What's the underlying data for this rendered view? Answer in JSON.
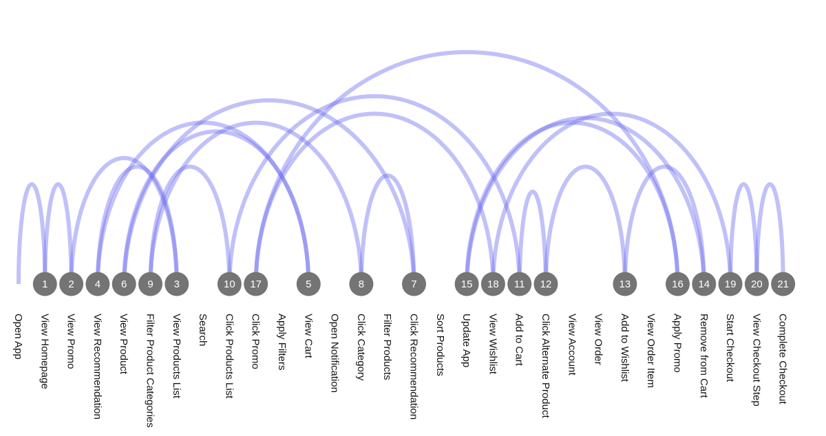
{
  "diagram": {
    "events": [
      "Open App",
      "View Homepage",
      "View Promo",
      "View Recommendation",
      "View Product",
      "Filter Product Categories",
      "View Products List",
      "Search",
      "Click Products List",
      "Click Promo",
      "Apply Filters",
      "View Cart",
      "Open Notification",
      "Click Category",
      "Filter Products",
      "Click Recommendation",
      "Sort Products",
      "Update App",
      "View Wishlist",
      "Add to Cart",
      "Click Alternate Product",
      "View Account",
      "View Order",
      "Add to Wishlist",
      "View Order Item",
      "Apply Promo",
      "Remove from Cart",
      "Start Checkout",
      "View Checkout Step",
      "Complete Checkout"
    ],
    "steps": [
      {
        "label": "1",
        "event_index": 1
      },
      {
        "label": "2",
        "event_index": 2
      },
      {
        "label": "3",
        "event_index": 6
      },
      {
        "label": "4",
        "event_index": 3
      },
      {
        "label": "5",
        "event_index": 11
      },
      {
        "label": "6",
        "event_index": 4
      },
      {
        "label": "7",
        "event_index": 15
      },
      {
        "label": "8",
        "event_index": 13
      },
      {
        "label": "9",
        "event_index": 5
      },
      {
        "label": "10",
        "event_index": 8
      },
      {
        "label": "11",
        "event_index": 19
      },
      {
        "label": "12",
        "event_index": 20
      },
      {
        "label": "13",
        "event_index": 23
      },
      {
        "label": "14",
        "event_index": 26
      },
      {
        "label": "15",
        "event_index": 17
      },
      {
        "label": "16",
        "event_index": 25
      },
      {
        "label": "17",
        "event_index": 9
      },
      {
        "label": "18",
        "event_index": 18
      },
      {
        "label": "19",
        "event_index": 27
      },
      {
        "label": "20",
        "event_index": 28
      },
      {
        "label": "21",
        "event_index": 29
      }
    ],
    "transitions": [
      [
        0,
        1
      ],
      [
        1,
        2
      ],
      [
        2,
        6
      ],
      [
        6,
        3
      ],
      [
        3,
        11
      ],
      [
        11,
        4
      ],
      [
        4,
        15
      ],
      [
        15,
        13
      ],
      [
        13,
        5
      ],
      [
        5,
        8
      ],
      [
        8,
        19
      ],
      [
        19,
        20
      ],
      [
        20,
        23
      ],
      [
        23,
        26
      ],
      [
        26,
        17
      ],
      [
        17,
        25
      ],
      [
        25,
        9
      ],
      [
        9,
        18
      ],
      [
        18,
        27
      ],
      [
        27,
        28
      ],
      [
        28,
        29
      ]
    ],
    "arc_color": "#6b6bf0",
    "node_color": "#747474"
  }
}
